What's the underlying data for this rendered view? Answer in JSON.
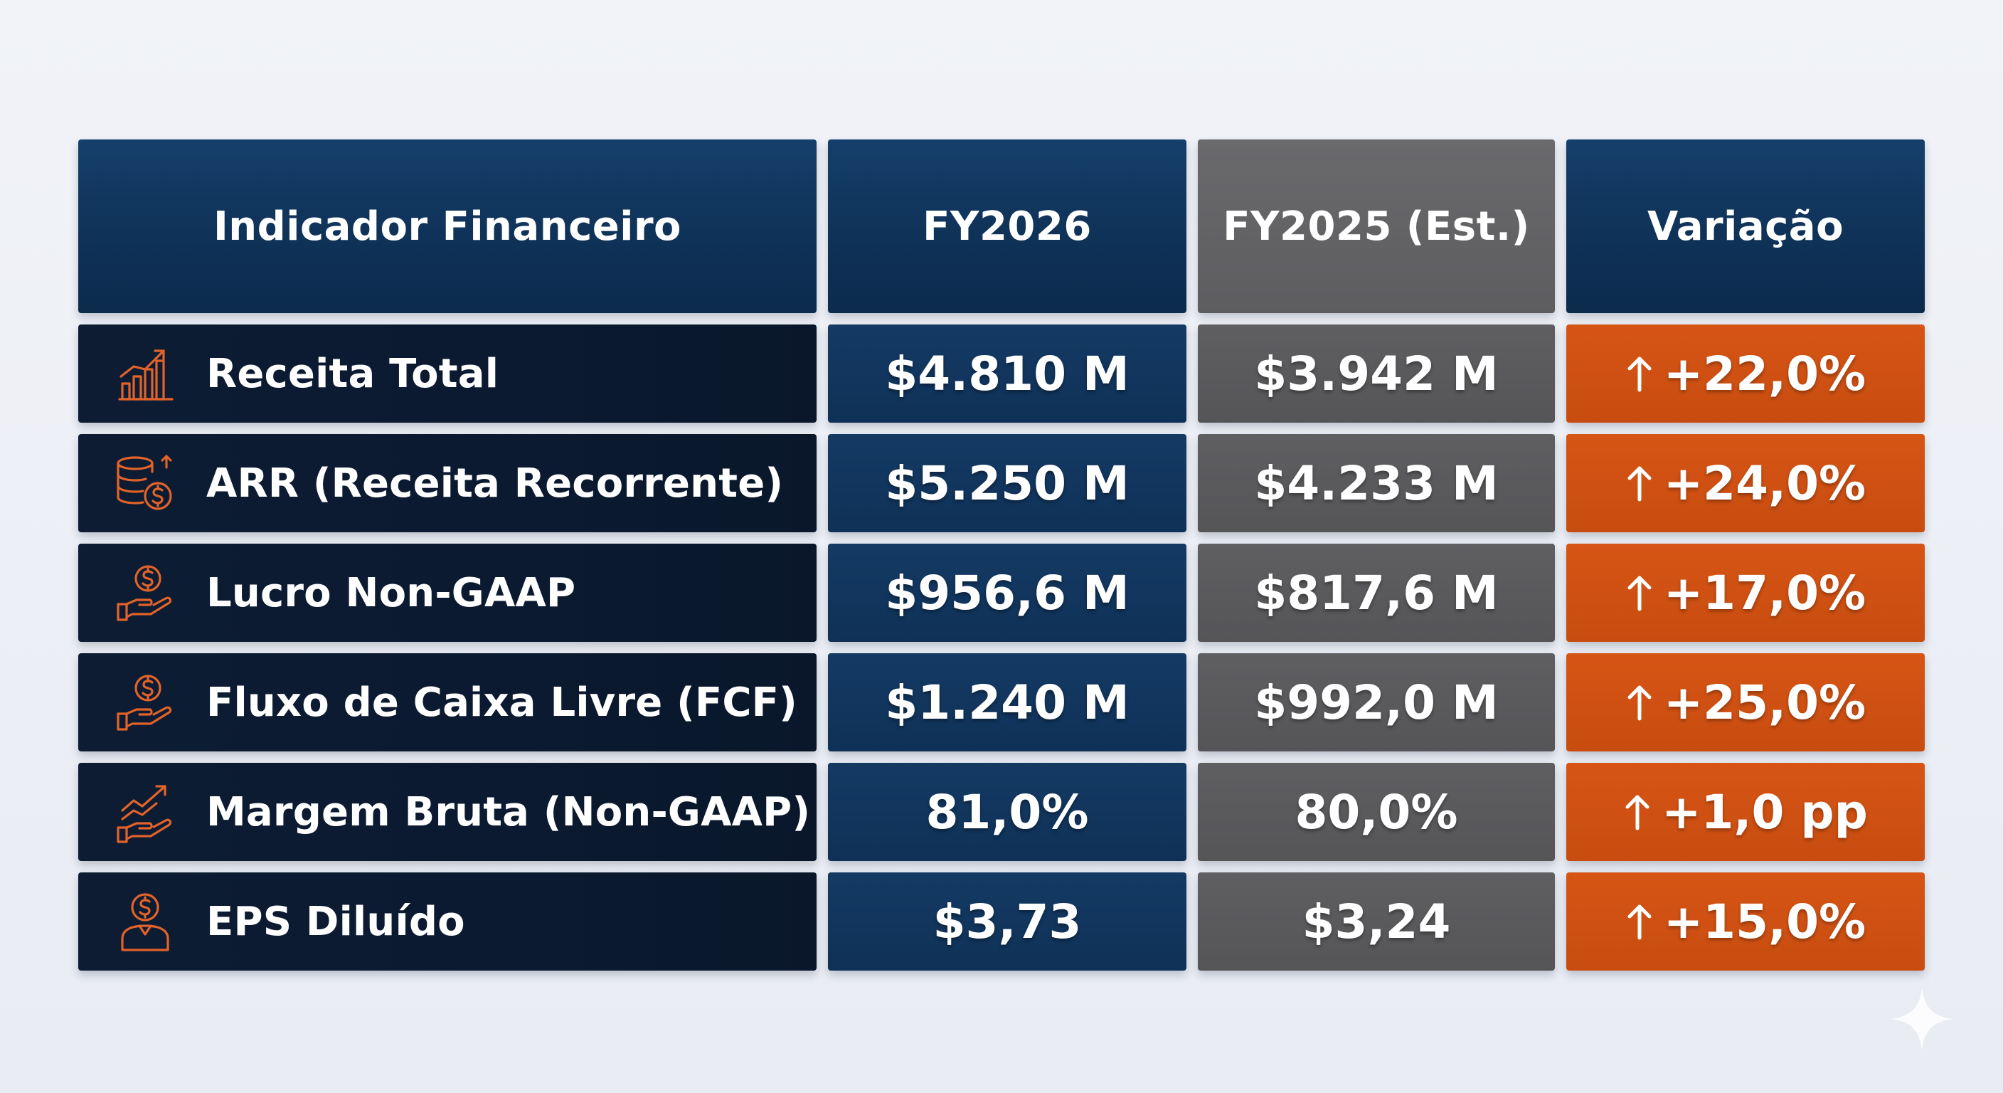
{
  "colors": {
    "navy": "#0f3258",
    "gray": "#5d5d60",
    "orange": "#d65515",
    "icon_accent": "#e2632a",
    "background": "#eef1f6"
  },
  "headers": {
    "indicator": "Indicador Financeiro",
    "fy2026": "FY2026",
    "fy2025": "FY2025 (Est.)",
    "change": "Variação"
  },
  "rows": [
    {
      "icon": "bar-chart-growth-icon",
      "label": "Receita Total",
      "fy2026": "$4.810 M",
      "fy2025": "$3.942 M",
      "change": "+22,0%",
      "direction": "up-arrow-icon"
    },
    {
      "icon": "coin-stack-dollar-icon",
      "label": "ARR (Receita Recorrente)",
      "fy2026": "$5.250 M",
      "fy2025": "$4.233 M",
      "change": "+24,0%",
      "direction": "up-arrow-icon"
    },
    {
      "icon": "hand-coin-icon",
      "label": "Lucro Non-GAAP",
      "fy2026": "$956,6 M",
      "fy2025": "$817,6 M",
      "change": "+17,0%",
      "direction": "up-arrow-icon"
    },
    {
      "icon": "hand-coin-icon",
      "label": "Fluxo de Caixa Livre (FCF)",
      "fy2026": "$1.240 M",
      "fy2025": "$992,0 M",
      "change": "+25,0%",
      "direction": "up-arrow-icon"
    },
    {
      "icon": "hand-trend-icon",
      "label": "Margem Bruta (Non-GAAP)",
      "fy2026": "81,0%",
      "fy2025": "80,0%",
      "change": "+1,0 pp",
      "direction": "up-arrow-icon"
    },
    {
      "icon": "person-dollar-icon",
      "label": "EPS Diluído",
      "fy2026": "$3,73",
      "fy2025": "$3,24",
      "change": "+15,0%",
      "direction": "up-arrow-icon"
    }
  ],
  "decor": {
    "corner_icon": "sparkle-icon"
  }
}
